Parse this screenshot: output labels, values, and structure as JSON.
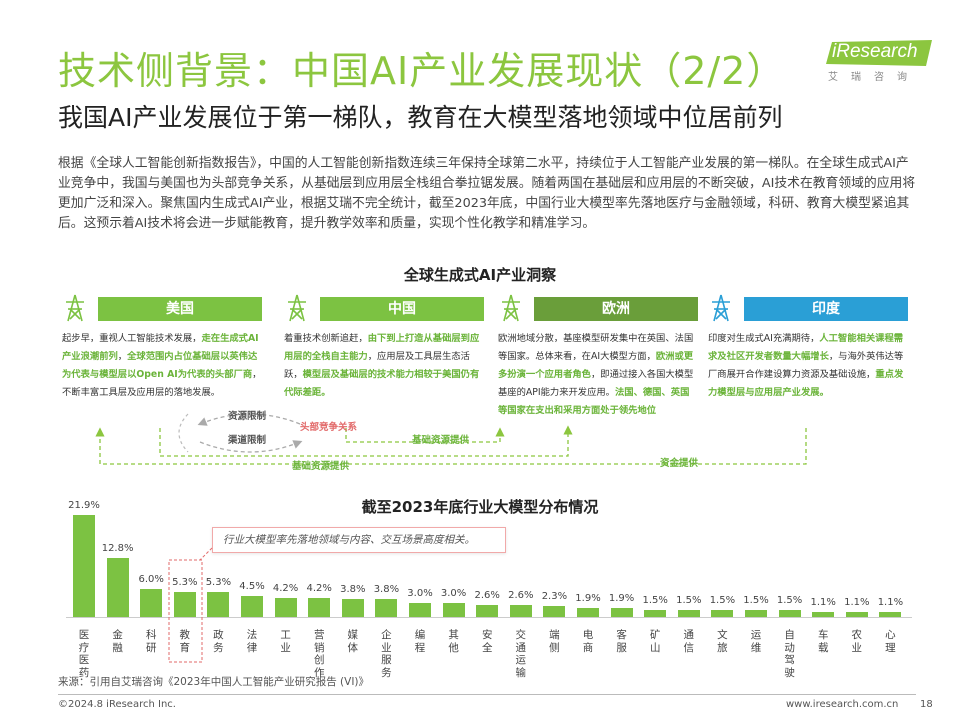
{
  "header": {
    "title": "技术侧背景：中国AI产业发展现状（2/2）",
    "subtitle": "我国AI产业发展位于第一梯队，教育在大模型落地领域中位居前列",
    "logo_text": "iResearch",
    "logo_sub": "艾瑞咨询"
  },
  "intro": "根据《全球人工智能创新指数报告》，中国的人工智能创新指数连续三年保持全球第二水平，持续位于人工智能产业发展的第一梯队。在全球生成式AI产业竞争中，我国与美国也为头部竞争关系，从基础层到应用层全栈组合拳拉锯发展。随着两国在基础层和应用层的不断突破，AI技术在教育领域的应用将更加广泛和深入。聚焦国内生成式AI产业，根据艾瑞不完全统计，截至2023年底，中国行业大模型率先落地医疗与金融领域，科研、教育大模型紧追其后。这预示着AI技术将会进一步赋能教育，提升教学效率和质量，实现个性化教学和精准学习。",
  "global": {
    "section_title": "全球生成式AI产业洞察",
    "regions": [
      {
        "name": "美国",
        "color": "#7cc242",
        "parts": [
          {
            "t": "起步早，重视人工智能技术发展，",
            "h": false
          },
          {
            "t": "走在生成式AI产业浪潮前列",
            "h": true
          },
          {
            "t": "，",
            "h": false
          },
          {
            "t": "全球范围内占位基础层以英伟达为代表与模型层以Open AI为代表的头部厂商",
            "h": true
          },
          {
            "t": "，不断丰富工具层及应用层的落地发展。",
            "h": false
          }
        ]
      },
      {
        "name": "中国",
        "color": "#7cc242",
        "parts": [
          {
            "t": "着重技术创新追赶，",
            "h": false
          },
          {
            "t": "由下到上打造从基础层到应用层的全栈自主能力",
            "h": true
          },
          {
            "t": "，应用层及工具层生态活跃，",
            "h": false
          },
          {
            "t": "模型层及基础层的技术能力相较于美国仍有代际差距。",
            "h": true
          }
        ]
      },
      {
        "name": "欧洲",
        "color": "#6a9e3a",
        "parts": [
          {
            "t": "欧洲地域分散，基座模型研发集中在英国、法国等国家。总体来看，在AI大模型方面，",
            "h": false
          },
          {
            "t": "欧洲或更多扮演一个应用者角色",
            "h": true
          },
          {
            "t": "，即通过接入各国大模型基座的API能力来开发应用。",
            "h": false
          },
          {
            "t": "法国、德国、英国等国家在支出和采用方面处于领先地位",
            "h": true
          }
        ]
      },
      {
        "name": "印度",
        "color": "#2a9fd6",
        "parts": [
          {
            "t": "印度对生成式AI充满期待，",
            "h": false
          },
          {
            "t": "人工智能相关课程需求及社区开发者数量大幅增长",
            "h": true
          },
          {
            "t": "，与海外英伟达等厂商展开合作建设算力资源及基础设施，",
            "h": false
          },
          {
            "t": "重点发力模型层与应用层产业发展。",
            "h": true
          }
        ]
      }
    ],
    "flows": {
      "resource_limit": "资源限制",
      "channel_limit": "渠道限制",
      "competition": "头部竞争关系",
      "basic_resource_1": "基础资源提供",
      "basic_resource_2": "基础资源提供",
      "capital": "资金提供"
    }
  },
  "chart_section_title": "截至2023年底行业大模型分布情况",
  "chart_note": "行业大模型率先落地领域与内容、交互场景高度相关。",
  "chart_data": {
    "type": "bar",
    "title": "截至2023年底行业大模型分布情况",
    "categories": [
      "医疗医药",
      "金融",
      "科研",
      "教育",
      "政务",
      "法律",
      "工业",
      "营销创作",
      "媒体",
      "企业服务",
      "编程",
      "其他",
      "安全",
      "交通运输",
      "端侧",
      "电商",
      "客服",
      "矿山",
      "通信",
      "文旅",
      "运维",
      "自动驾驶",
      "车载",
      "农业",
      "心理"
    ],
    "values": [
      21.9,
      12.8,
      6.0,
      5.3,
      5.3,
      4.5,
      4.2,
      4.2,
      3.8,
      3.8,
      3.0,
      3.0,
      2.6,
      2.6,
      2.3,
      1.9,
      1.9,
      1.5,
      1.5,
      1.5,
      1.5,
      1.5,
      1.1,
      1.1,
      1.1
    ],
    "labels": [
      "21.9%",
      "12.8%",
      "6.0%",
      "5.3%",
      "5.3%",
      "4.5%",
      "4.2%",
      "4.2%",
      "3.8%",
      "3.8%",
      "3.0%",
      "3.0%",
      "2.6%",
      "2.6%",
      "2.3%",
      "1.9%",
      "1.9%",
      "1.5%",
      "1.5%",
      "1.5%",
      "1.5%",
      "1.5%",
      "1.1%",
      "1.1%",
      "1.1%"
    ],
    "highlight_index": 3,
    "bar_color": "#7cc242",
    "ylim": [
      0,
      22
    ]
  },
  "source": "来源：引用自艾瑞咨询《2023年中国人工智能产业研究报告 (VI)》",
  "footer": {
    "copyright": "©2024.8 iResearch Inc.",
    "url": "www.iresearch.com.cn",
    "page": "18"
  }
}
